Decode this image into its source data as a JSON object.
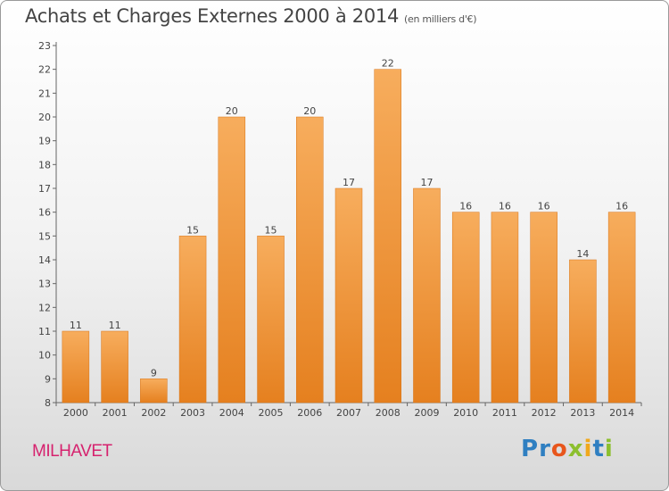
{
  "header": {
    "title": "Achats et Charges Externes 2000 à 2014",
    "subtitle": "(en milliers d'€)"
  },
  "footer": {
    "town": "MILHAVET",
    "logo": {
      "text": "Proxiti",
      "letters": [
        {
          "ch": "P",
          "color": "#2f7fc1"
        },
        {
          "ch": "r",
          "color": "#2f7fc1"
        },
        {
          "ch": "o",
          "color": "#e8561c"
        },
        {
          "ch": "x",
          "color": "#8cbf2e"
        },
        {
          "ch": "i",
          "color": "#f0a81b"
        },
        {
          "ch": "t",
          "color": "#2f7fc1"
        },
        {
          "ch": "i",
          "color": "#8cbf2e"
        }
      ]
    }
  },
  "chart_data": {
    "type": "bar",
    "title": "Achats et Charges Externes 2000 à 2014",
    "subtitle": "(en milliers d'€)",
    "categories": [
      "2000",
      "2001",
      "2002",
      "2003",
      "2004",
      "2005",
      "2006",
      "2007",
      "2008",
      "2009",
      "2010",
      "2011",
      "2012",
      "2013",
      "2014"
    ],
    "values": [
      11,
      11,
      9,
      15,
      20,
      15,
      20,
      17,
      22,
      17,
      16,
      16,
      16,
      14,
      16
    ],
    "ylim": [
      8,
      23
    ],
    "yticks": [
      8,
      9,
      10,
      11,
      12,
      13,
      14,
      15,
      16,
      17,
      18,
      19,
      20,
      21,
      22,
      23
    ],
    "xlabel": "",
    "ylabel": "",
    "grid": false,
    "data_labels": true,
    "bar_color": "#f09a3e",
    "bar_color_light": "#f7b060",
    "bar_color_dark": "#e0781f"
  }
}
